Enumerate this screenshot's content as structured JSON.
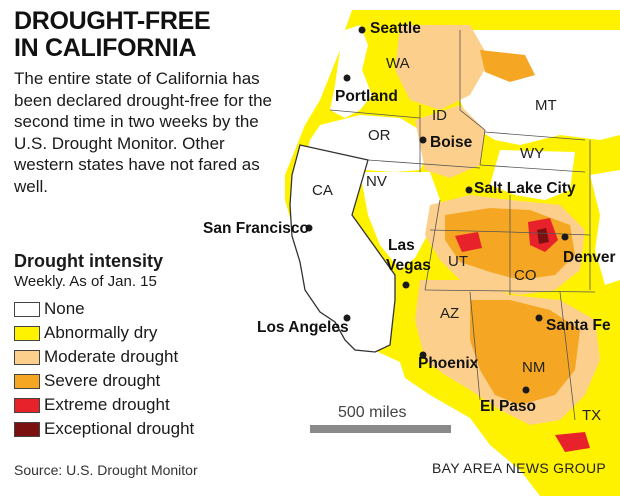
{
  "title": [
    "DROUGHT-FREE",
    "IN CALIFORNIA"
  ],
  "description": "The entire state of California has been declared drought-free for the second time in two weeks by the U.S. Drought Monitor. Other western states have not fared as well.",
  "legend": {
    "title": "Drought intensity",
    "subtitle": "Weekly. As of Jan. 15",
    "items": [
      {
        "label": "None",
        "color": "#ffffff"
      },
      {
        "label": "Abnormally dry",
        "color": "#fff200"
      },
      {
        "label": "Moderate drought",
        "color": "#fcd08c"
      },
      {
        "label": "Severe drought",
        "color": "#f5a623"
      },
      {
        "label": "Extreme drought",
        "color": "#e8222a"
      },
      {
        "label": "Exceptional drought",
        "color": "#7a1010"
      }
    ]
  },
  "states": [
    "WA",
    "OR",
    "ID",
    "MT",
    "WY",
    "CA",
    "NV",
    "UT",
    "CO",
    "AZ",
    "NM",
    "TX"
  ],
  "cities": [
    "Seattle",
    "Portland",
    "Boise",
    "Salt Lake City",
    "San Francisco",
    "Las Vegas",
    "Denver",
    "Los Angeles",
    "Santa Fe",
    "Phoenix",
    "El Paso"
  ],
  "scale": "500 miles",
  "source": "Source: U.S. Drought Monitor",
  "credit": "BAY AREA NEWS GROUP"
}
